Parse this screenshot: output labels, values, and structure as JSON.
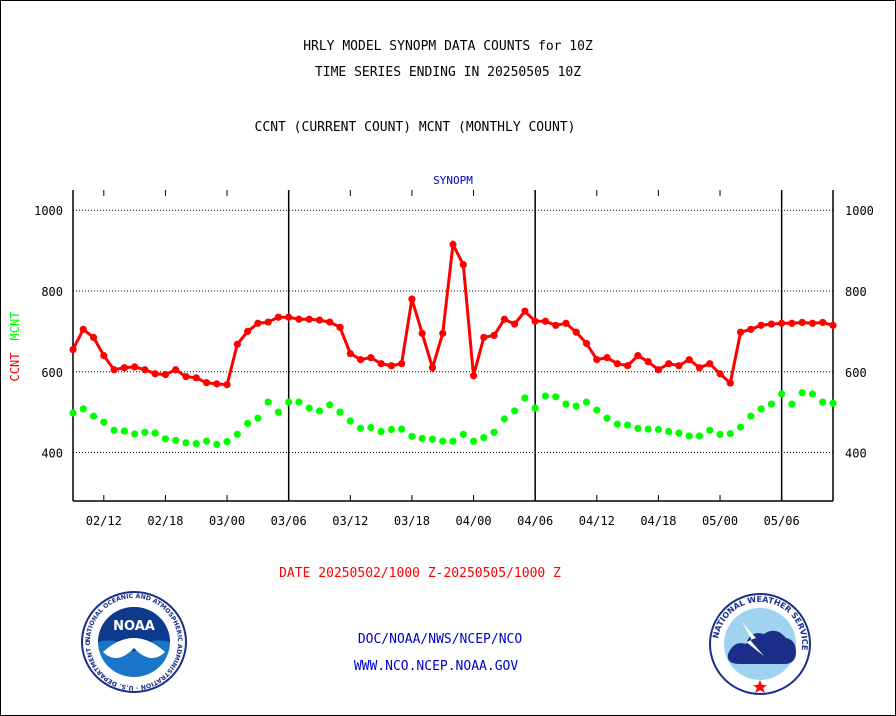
{
  "header": {
    "title_line1": "HRLY MODEL SYNOPM DATA COUNTS for 10Z",
    "title_line2": "TIME SERIES ENDING IN 20250505 10Z",
    "subtitle": "CCNT (CURRENT COUNT) MCNT (MONTHLY COUNT)"
  },
  "footer": {
    "date_range": "DATE 20250502/1000 Z-20250505/1000 Z",
    "org_path": "DOC/NOAA/NWS/NCEP/NCO",
    "website": "WWW.NCO.NCEP.NOAA.GOV"
  },
  "logos": {
    "noaa_text": "NOAA",
    "noaa_ring_text": "NATIONAL OCEANIC AND ATMOSPHERIC ADMINISTRATION · U.S. DEPARTMENT OF COMMERCE",
    "nws_ring_text": "NATIONAL WEATHER SERVICE"
  },
  "chart_data": {
    "type": "line",
    "title": "SYNOPM",
    "ylabel_series": [
      "CCNT",
      "MCNT"
    ],
    "ylim": [
      280,
      1050
    ],
    "yticks": [
      400,
      600,
      800,
      1000
    ],
    "grid": true,
    "x_tick_labels": [
      "02/12",
      "02/18",
      "03/00",
      "03/06",
      "03/12",
      "03/18",
      "04/00",
      "04/06",
      "04/12",
      "04/18",
      "05/00",
      "05/06"
    ],
    "day_boundaries": [
      "03/06",
      "04/06",
      "05/06"
    ],
    "colors": {
      "CCNT": "#ff0000",
      "MCNT": "#00ff00",
      "title": "#0000cc"
    },
    "series": [
      {
        "name": "CCNT",
        "values": [
          655,
          705,
          685,
          640,
          605,
          610,
          612,
          605,
          595,
          593,
          605,
          588,
          585,
          573,
          570,
          568,
          668,
          700,
          720,
          723,
          735,
          735,
          730,
          730,
          728,
          723,
          710,
          645,
          630,
          635,
          620,
          615,
          620,
          780,
          695,
          610,
          695,
          915,
          865,
          590,
          685,
          690,
          730,
          718,
          750,
          725,
          725,
          715,
          720,
          698,
          670,
          630,
          635,
          620,
          615,
          640,
          625,
          605,
          620,
          615,
          630,
          610,
          620,
          595,
          572,
          698,
          705,
          715,
          718,
          720,
          720,
          722,
          720,
          722,
          715
        ]
      },
      {
        "name": "MCNT",
        "values": [
          498,
          508,
          490,
          475,
          455,
          453,
          446,
          450,
          448,
          434,
          430,
          424,
          422,
          428,
          420,
          427,
          445,
          472,
          485,
          525,
          500,
          525,
          525,
          510,
          503,
          518,
          500,
          478,
          460,
          462,
          452,
          457,
          458,
          440,
          435,
          433,
          428,
          428,
          445,
          428,
          437,
          450,
          483,
          503,
          535,
          510,
          540,
          538,
          520,
          515,
          525,
          505,
          485,
          470,
          468,
          460,
          458,
          457,
          452,
          448,
          441,
          441,
          455,
          445,
          447,
          463,
          490,
          508,
          520,
          545,
          520,
          548,
          545,
          525,
          522
        ]
      }
    ]
  }
}
